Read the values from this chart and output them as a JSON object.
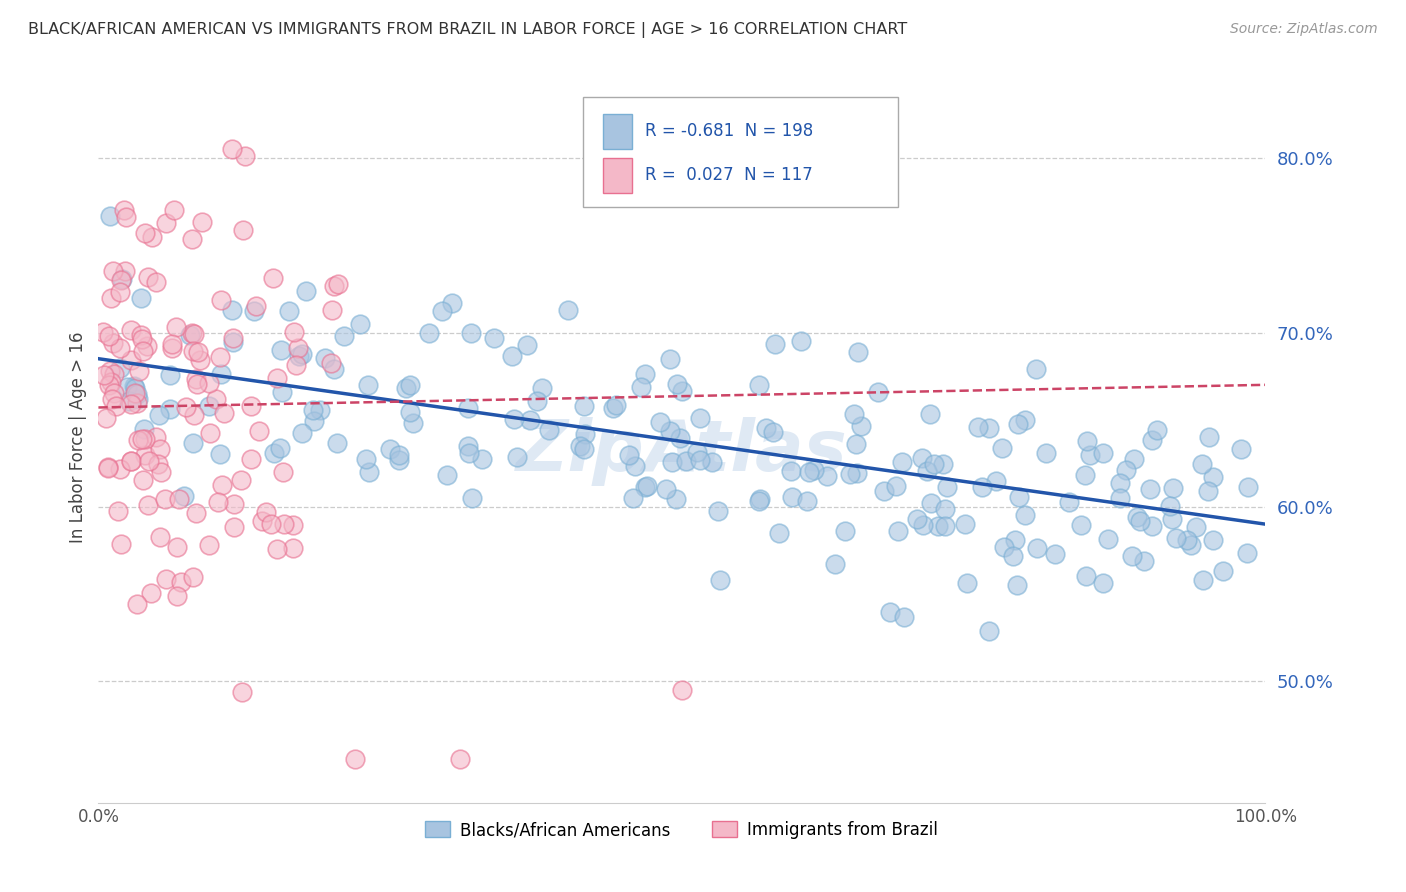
{
  "title": "BLACK/AFRICAN AMERICAN VS IMMIGRANTS FROM BRAZIL IN LABOR FORCE | AGE > 16 CORRELATION CHART",
  "source": "Source: ZipAtlas.com",
  "ylabel": "In Labor Force | Age > 16",
  "legend_blue_r": "-0.681",
  "legend_blue_n": "198",
  "legend_pink_r": "0.027",
  "legend_pink_n": "117",
  "legend_blue_label": "Blacks/African Americans",
  "legend_pink_label": "Immigrants from Brazil",
  "blue_color": "#a8c4e0",
  "blue_edge_color": "#7aafd4",
  "blue_line_color": "#2255aa",
  "pink_color": "#f4b8c8",
  "pink_edge_color": "#e87090",
  "pink_line_color": "#cc4466",
  "xlim": [
    0.0,
    1.0
  ],
  "ylim": [
    0.43,
    0.85
  ],
  "y_ticks": [
    0.5,
    0.6,
    0.7,
    0.8
  ],
  "y_tick_labels": [
    "50.0%",
    "60.0%",
    "70.0%",
    "80.0%"
  ],
  "blue_trend_x": [
    0.0,
    1.0
  ],
  "blue_trend_y": [
    0.685,
    0.59
  ],
  "pink_trend_x": [
    0.0,
    1.0
  ],
  "pink_trend_y": [
    0.657,
    0.67
  ],
  "legend_text_color": "#2255aa",
  "watermark_text": "ZipAtlas",
  "watermark_color": "#c5d8ec"
}
